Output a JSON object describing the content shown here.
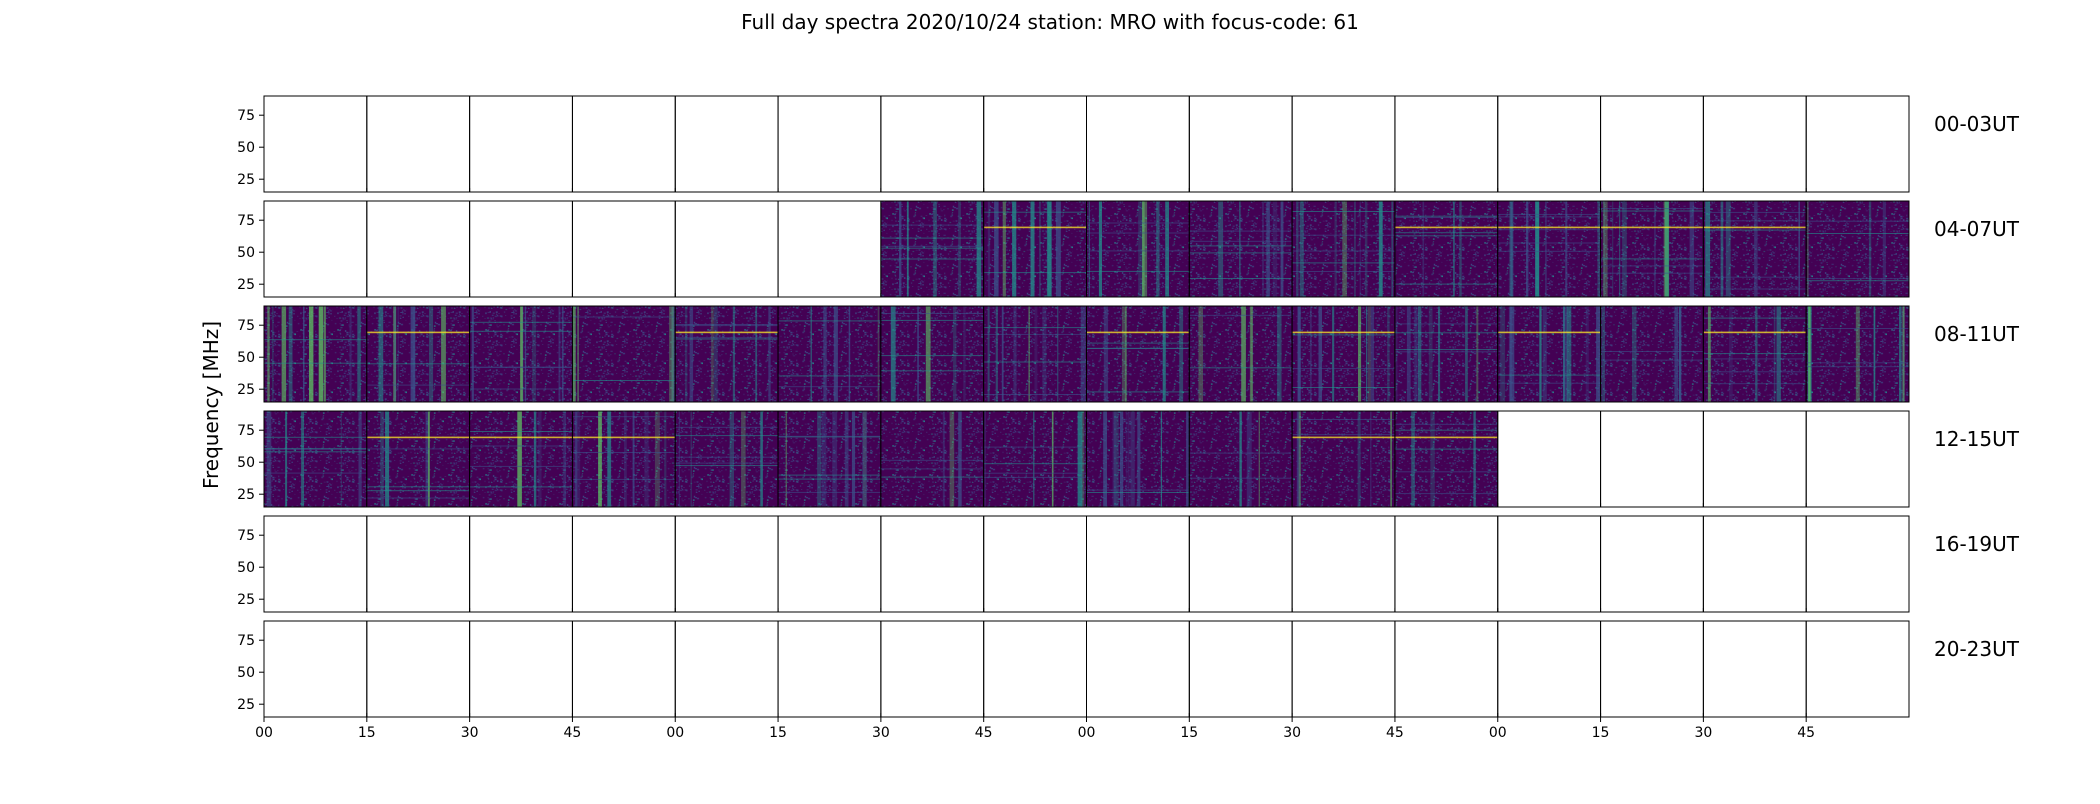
{
  "title": "Full day spectra 2020/10/24 station: MRO with focus-code: 61",
  "ylabel": "Frequency [MHz]",
  "chart_data": {
    "type": "heatmap",
    "title": "Full day spectra 2020/10/24 station: MRO with focus-code: 61",
    "ylabel": "Frequency [MHz]",
    "xlabel": "",
    "rows": [
      "00-03UT",
      "04-07UT",
      "08-11UT",
      "12-15UT",
      "16-19UT",
      "20-23UT"
    ],
    "panels_per_row": 16,
    "panel_minutes": 15,
    "y_ticks": [
      25,
      50,
      75
    ],
    "ylim": [
      15,
      90
    ],
    "x_ticks": [
      "00",
      "15",
      "30",
      "45",
      "00",
      "15",
      "30",
      "45",
      "00",
      "15",
      "30",
      "45",
      "00",
      "15",
      "30",
      "45"
    ],
    "data_present": [
      [
        0,
        0,
        0,
        0,
        0,
        0,
        0,
        0,
        0,
        0,
        0,
        0,
        0,
        0,
        0,
        0
      ],
      [
        0,
        0,
        0,
        0,
        0,
        0,
        1,
        1,
        1,
        1,
        1,
        1,
        1,
        1,
        1,
        1
      ],
      [
        1,
        1,
        1,
        1,
        1,
        1,
        1,
        1,
        1,
        1,
        1,
        1,
        1,
        1,
        1,
        1
      ],
      [
        1,
        1,
        1,
        1,
        1,
        1,
        1,
        1,
        1,
        1,
        1,
        1,
        0,
        0,
        0,
        0
      ],
      [
        0,
        0,
        0,
        0,
        0,
        0,
        0,
        0,
        0,
        0,
        0,
        0,
        0,
        0,
        0,
        0
      ],
      [
        0,
        0,
        0,
        0,
        0,
        0,
        0,
        0,
        0,
        0,
        0,
        0,
        0,
        0,
        0,
        0
      ]
    ],
    "colormap": [
      "#440154",
      "#3b528b",
      "#21918c",
      "#5ec962",
      "#fde725"
    ]
  }
}
